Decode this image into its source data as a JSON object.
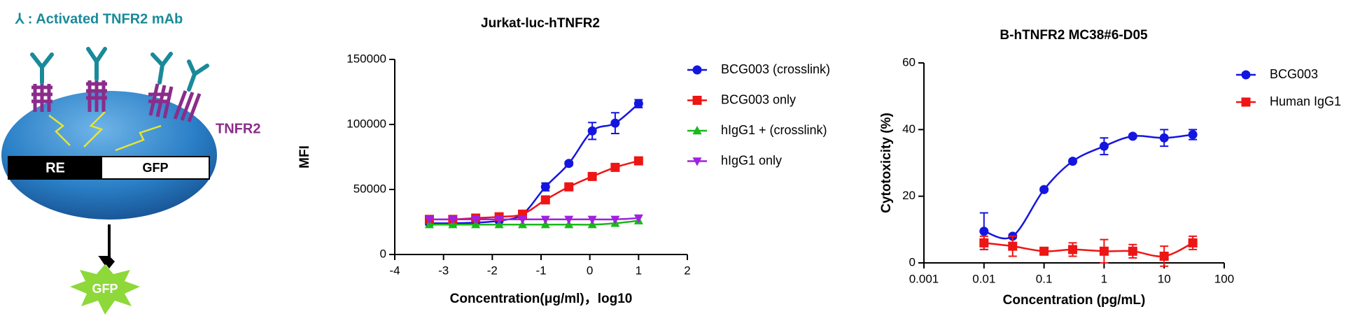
{
  "diagram": {
    "legend": "⅄ : Activated TNFR2 mAb",
    "receptor_label": "TNFR2",
    "promoter_label": "RE",
    "reporter_label": "GFP",
    "output_label": "GFP"
  },
  "chart_data": [
    {
      "type": "line",
      "title": "Jurkat-luc-hTNFR2",
      "x_label": "Concentration(μg/ml)，log10",
      "y_label": "MFI",
      "x": [
        -3.29,
        -2.81,
        -2.34,
        -1.86,
        -1.38,
        -0.91,
        -0.43,
        0.05,
        0.52,
        1.0
      ],
      "xlim": [
        -4,
        2
      ],
      "xticks": [
        -4,
        -3,
        -2,
        -1,
        0,
        1,
        2
      ],
      "ylim": [
        0,
        150000
      ],
      "yticks": [
        0,
        50000,
        100000,
        150000
      ],
      "log_x": false,
      "series": [
        {
          "name": "BCG003 (crosslink)",
          "color": "#1515e0",
          "marker": "circle",
          "values": [
            24000,
            24000,
            24500,
            26000,
            31000,
            52000,
            70000,
            95000,
            101000,
            116000
          ],
          "errors": [
            1000,
            1000,
            1000,
            1000,
            2000,
            3000,
            1500,
            6500,
            8000,
            3000
          ]
        },
        {
          "name": "BCG003 only",
          "color": "#ee1515",
          "marker": "square",
          "values": [
            27000,
            27000,
            28000,
            29000,
            31000,
            42000,
            52000,
            60000,
            67000,
            72000
          ]
        },
        {
          "name": "hIgG1 + (crosslink)",
          "color": "#1ab81a",
          "marker": "triangle-up",
          "values": [
            23000,
            23000,
            23000,
            23000,
            23000,
            23000,
            23000,
            23000,
            24000,
            26000
          ]
        },
        {
          "name": "hIgG1 only",
          "color": "#a020e0",
          "marker": "triangle-down",
          "values": [
            27000,
            27000,
            27000,
            27000,
            27000,
            27000,
            27000,
            27000,
            27000,
            28000
          ]
        }
      ]
    },
    {
      "type": "line",
      "title": "B-hTNFR2 MC38#6-D05",
      "x_label": "Concentration (pg/mL)",
      "y_label": "Cytotoxicity (%)",
      "x": [
        0.01,
        0.03,
        0.1,
        0.3,
        1,
        3,
        10,
        30
      ],
      "xlim": [
        0.001,
        100
      ],
      "xticks": [
        0.001,
        0.01,
        0.1,
        1,
        10,
        100
      ],
      "ylim": [
        0,
        60
      ],
      "yticks": [
        0,
        20,
        40,
        60
      ],
      "log_x": true,
      "series": [
        {
          "name": "BCG003",
          "color": "#1515e0",
          "marker": "circle",
          "values": [
            9.5,
            8,
            22,
            30.5,
            35,
            38,
            37.5,
            38.5
          ],
          "errors": [
            5.5,
            0.5,
            0.5,
            0.5,
            2.5,
            0.5,
            2.5,
            1.5
          ]
        },
        {
          "name": "Human IgG1",
          "color": "#ee1515",
          "marker": "square",
          "values": [
            6,
            5,
            3.5,
            4,
            3.5,
            3.5,
            2,
            6
          ],
          "errors": [
            2,
            3,
            1,
            2,
            3.5,
            2,
            3,
            2
          ]
        }
      ]
    }
  ]
}
